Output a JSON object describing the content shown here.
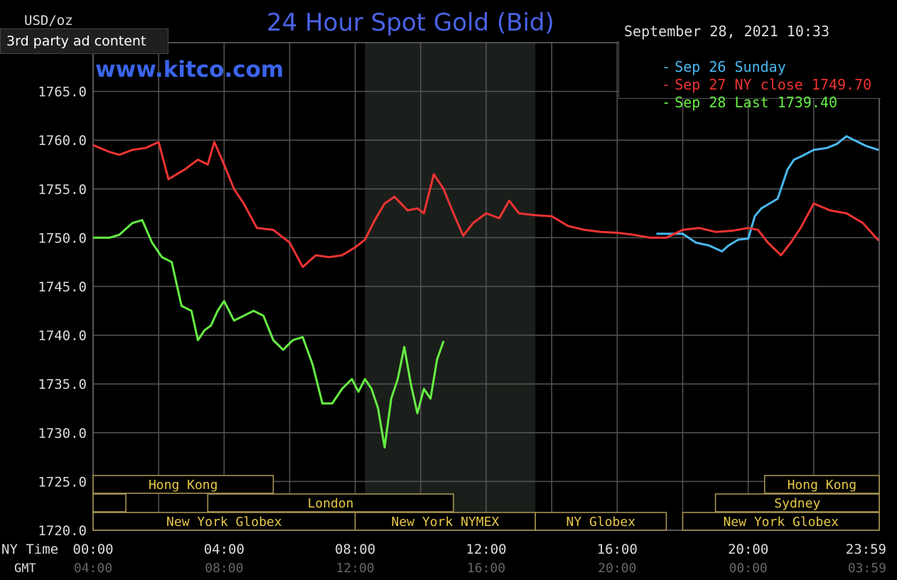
{
  "header": {
    "ad_label": "3rd party ad content",
    "title": "24 Hour Spot Gold (Bid)",
    "site": "www.kitco.com",
    "unit": "USD/oz",
    "datestamp": "September 28, 2021 10:33"
  },
  "legend": [
    {
      "marker": "-",
      "text": "Sep 26 Sunday",
      "color": "#4ab8f0"
    },
    {
      "marker": "-",
      "text": "Sep 27 NY close 1749.70",
      "color": "#ee3333"
    },
    {
      "marker": "-",
      "text": "Sep 28 Last 1739.40",
      "color": "#66ee44"
    }
  ],
  "axis_labels": {
    "ny_time": "NY Time",
    "gmt": "GMT"
  },
  "sessions": [
    {
      "label": "Hong Kong",
      "row": 0,
      "start": 0,
      "end": 5.5
    },
    {
      "label": "Hong Kong",
      "row": 0,
      "start": 20.5,
      "end": 24
    },
    {
      "label": "",
      "row": 1,
      "start": 0,
      "end": 1
    },
    {
      "label": "London",
      "row": 1,
      "start": 3.5,
      "end": 11
    },
    {
      "label": "Sydney",
      "row": 1,
      "start": 19,
      "end": 24
    },
    {
      "label": "New York Globex",
      "row": 2,
      "start": 0,
      "end": 8
    },
    {
      "label": "New York NYMEX",
      "row": 2,
      "start": 8,
      "end": 13.5
    },
    {
      "label": "NY Globex",
      "row": 2,
      "start": 13.5,
      "end": 17.5
    },
    {
      "label": "New York Globex",
      "row": 2,
      "start": 18,
      "end": 24
    }
  ],
  "chart_data": {
    "type": "line",
    "xlim": [
      0,
      24
    ],
    "ylim": [
      1720,
      1770
    ],
    "y_ticks": [
      "1720.0",
      "1725.0",
      "1730.0",
      "1735.0",
      "1740.0",
      "1745.0",
      "1750.0",
      "1755.0",
      "1760.0",
      "1765.0"
    ],
    "y_tick_values": [
      1720,
      1725,
      1730,
      1735,
      1740,
      1745,
      1750,
      1755,
      1760,
      1765
    ],
    "x_ticks_ny": [
      "00:00",
      "04:00",
      "08:00",
      "12:00",
      "16:00",
      "20:00",
      "23:59"
    ],
    "x_ticks_gmt": [
      "04:00",
      "08:00",
      "12:00",
      "16:00",
      "20:00",
      "00:00",
      "03:59"
    ],
    "x_tick_values": [
      0,
      4,
      8,
      12,
      16,
      20,
      23.98
    ],
    "grid": true,
    "shaded_region": [
      8.3,
      13.5
    ],
    "legend_position": "top-right",
    "series": [
      {
        "name": "Sep 26 Sunday",
        "color": "#4ab8f0",
        "x": [
          17.2,
          18,
          18.4,
          18.8,
          19.2,
          19.4,
          19.7,
          20.0,
          20.2,
          20.4,
          20.7,
          20.9,
          21.2,
          21.4,
          21.6,
          22.0,
          22.4,
          22.7,
          23.0,
          23.3,
          23.6,
          23.98
        ],
        "values": [
          1750.4,
          1750.4,
          1749.5,
          1749.2,
          1748.6,
          1749.2,
          1749.8,
          1749.9,
          1752.2,
          1753.0,
          1753.6,
          1754.0,
          1757.0,
          1758.0,
          1758.3,
          1759.0,
          1759.2,
          1759.6,
          1760.4,
          1759.9,
          1759.4,
          1759.0
        ]
      },
      {
        "name": "Sep 27 NY close 1749.70",
        "color": "#ee3333",
        "x": [
          0,
          0.5,
          0.8,
          1.2,
          1.6,
          2.0,
          2.3,
          2.8,
          3.2,
          3.5,
          3.7,
          4.0,
          4.3,
          4.6,
          5.0,
          5.5,
          6.0,
          6.4,
          6.8,
          7.2,
          7.6,
          8.0,
          8.3,
          8.6,
          8.9,
          9.2,
          9.6,
          9.9,
          10.1,
          10.4,
          10.7,
          11.0,
          11.3,
          11.6,
          12.0,
          12.4,
          12.7,
          13.0,
          13.5,
          14.0,
          14.5,
          15.0,
          15.5,
          16.0,
          16.5,
          17.0,
          17.5,
          18.0,
          18.5,
          19.0,
          19.5,
          20.0,
          20.3,
          20.6,
          21.0,
          21.3,
          21.6,
          22.0,
          22.5,
          23.0,
          23.5,
          23.98
        ],
        "values": [
          1759.5,
          1758.8,
          1758.5,
          1759.0,
          1759.2,
          1759.8,
          1756.0,
          1757.0,
          1758.0,
          1757.5,
          1759.8,
          1757.5,
          1755.0,
          1753.5,
          1751.0,
          1750.8,
          1749.5,
          1747.0,
          1748.2,
          1748.0,
          1748.2,
          1749.0,
          1749.8,
          1751.8,
          1753.5,
          1754.2,
          1752.8,
          1753.0,
          1752.5,
          1756.5,
          1755.0,
          1752.5,
          1750.2,
          1751.5,
          1752.5,
          1752.0,
          1753.8,
          1752.5,
          1752.3,
          1752.2,
          1751.2,
          1750.8,
          1750.6,
          1750.5,
          1750.3,
          1750.0,
          1750.0,
          1750.8,
          1751.0,
          1750.6,
          1750.7,
          1751.0,
          1750.8,
          1749.5,
          1748.2,
          1749.5,
          1751.0,
          1753.5,
          1752.8,
          1752.5,
          1751.5,
          1749.7
        ]
      },
      {
        "name": "Sep 28 Last 1739.40",
        "color": "#66ee44",
        "x": [
          0,
          0.5,
          0.8,
          1.2,
          1.5,
          1.8,
          2.1,
          2.4,
          2.7,
          3.0,
          3.2,
          3.4,
          3.6,
          3.8,
          4.0,
          4.3,
          4.6,
          4.9,
          5.2,
          5.5,
          5.8,
          6.1,
          6.4,
          6.7,
          7.0,
          7.3,
          7.6,
          7.9,
          8.1,
          8.3,
          8.5,
          8.7,
          8.9,
          9.1,
          9.3,
          9.5,
          9.7,
          9.9,
          10.1,
          10.3,
          10.5,
          10.7
        ],
        "values": [
          1750.0,
          1750.0,
          1750.3,
          1751.5,
          1751.8,
          1749.5,
          1748.0,
          1747.5,
          1743.0,
          1742.5,
          1739.5,
          1740.5,
          1741.0,
          1742.5,
          1743.5,
          1741.5,
          1742.0,
          1742.5,
          1742.0,
          1739.5,
          1738.5,
          1739.5,
          1739.8,
          1737.0,
          1733.0,
          1733.0,
          1734.5,
          1735.5,
          1734.2,
          1735.5,
          1734.5,
          1732.5,
          1728.5,
          1733.5,
          1735.5,
          1738.8,
          1735.0,
          1732.0,
          1734.5,
          1733.5,
          1737.5,
          1739.4
        ]
      }
    ]
  }
}
